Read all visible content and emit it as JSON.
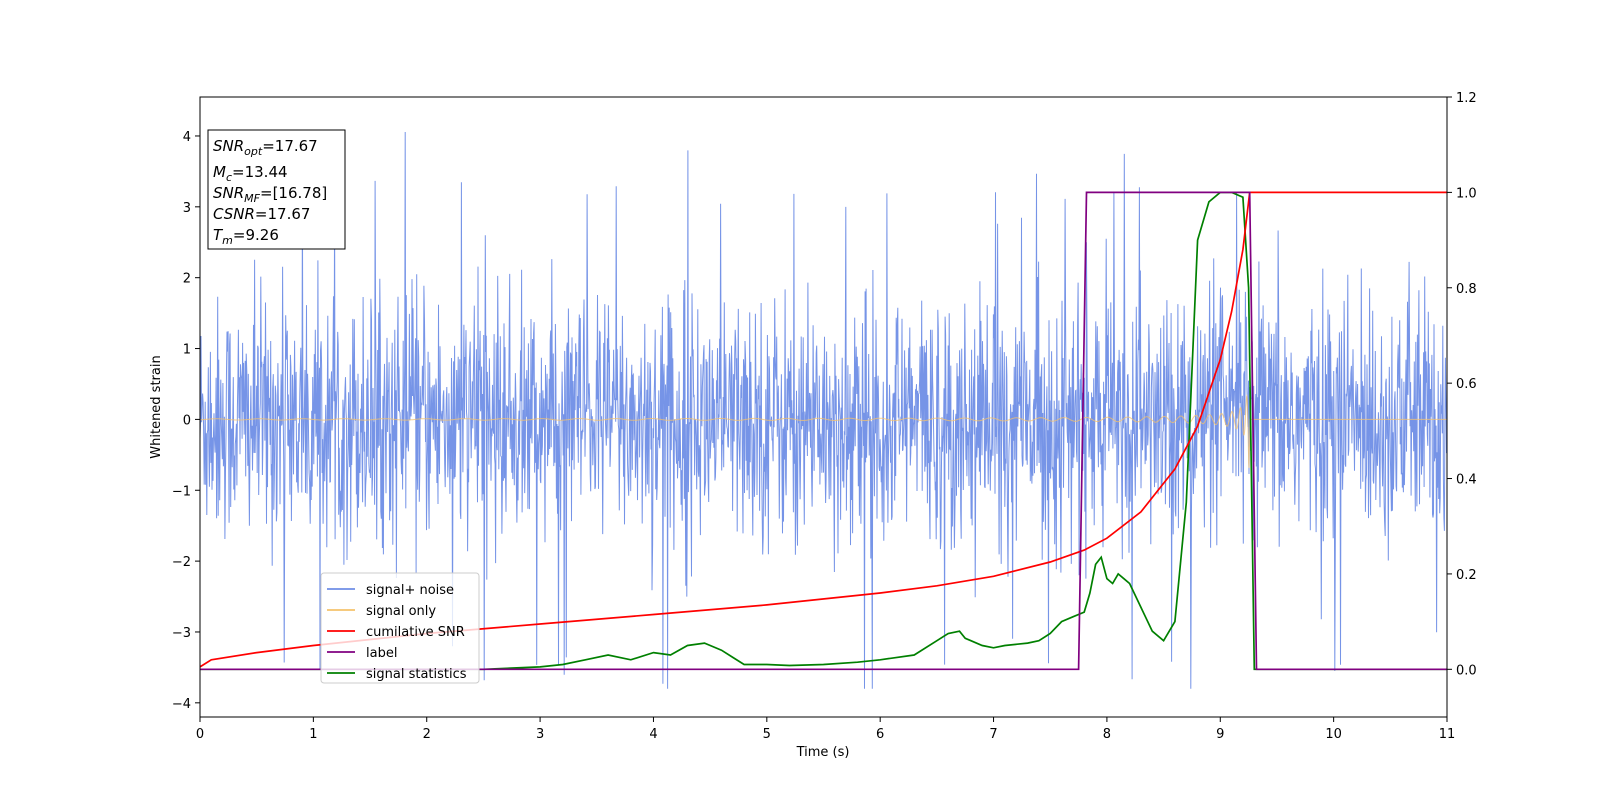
{
  "chart_data": {
    "type": "line",
    "title": "",
    "xlabel": "Time (s)",
    "ylabel": "Whitened strain",
    "xlim": [
      0,
      11
    ],
    "ylim": [
      -4.2,
      4.55
    ],
    "y2lim": [
      -0.1,
      1.2
    ],
    "x_ticks": [
      "0",
      "1",
      "2",
      "3",
      "4",
      "5",
      "6",
      "7",
      "8",
      "9",
      "10",
      "11"
    ],
    "y_ticks": [
      "4",
      "3",
      "2",
      "1",
      "0",
      "−1",
      "−2",
      "−3",
      "−4"
    ],
    "y2_ticks": [
      "1.2",
      "1.0",
      "0.8",
      "0.6",
      "0.4",
      "0.2",
      "0.0"
    ],
    "grid": false,
    "legend_position": "lower-left",
    "info_box": {
      "snr_opt": {
        "label": "SNR",
        "sub": "opt",
        "value": "=17.67"
      },
      "mc": {
        "label": "M",
        "sub": "c",
        "value": "=13.44"
      },
      "snr_mf": {
        "label": "SNR",
        "sub": "MF",
        "value": "=[16.78]"
      },
      "csnr": {
        "label": "CSNR",
        "value": "=17.67"
      },
      "tm": {
        "label": "T",
        "sub": "m",
        "value": "=9.26"
      }
    },
    "series": [
      {
        "name": "signal+ noise",
        "color": "#6f8ee6",
        "axis": "left",
        "style": "dense noise, amplitude about ±2.5 with spikes near 4.2 and −3.8"
      },
      {
        "name": "signal only",
        "color": "#f5c26b",
        "axis": "left",
        "style": "chirp growing from 0 to 9.26 s, then flat at 0",
        "merge_time": 9.26
      },
      {
        "name": "cumilative SNR",
        "color": "#ff0000",
        "axis": "right",
        "x": [
          0,
          0.1,
          0.5,
          1,
          2,
          3,
          4,
          5,
          6,
          6.5,
          7,
          7.5,
          7.8,
          8,
          8.3,
          8.6,
          8.8,
          9,
          9.1,
          9.2,
          9.26,
          10,
          11
        ],
        "y": [
          0.005,
          0.02,
          0.035,
          0.05,
          0.075,
          0.095,
          0.115,
          0.135,
          0.16,
          0.175,
          0.195,
          0.225,
          0.25,
          0.275,
          0.33,
          0.42,
          0.51,
          0.65,
          0.75,
          0.88,
          1.0,
          1.0,
          1.0
        ]
      },
      {
        "name": "label",
        "color": "#800080",
        "axis": "right",
        "x": [
          0,
          7.75,
          7.82,
          9.26,
          9.32,
          11
        ],
        "y": [
          0,
          0,
          1,
          1,
          0,
          0
        ]
      },
      {
        "name": "signal statistics",
        "color": "#008000",
        "axis": "right",
        "x": [
          0,
          2.5,
          3,
          3.2,
          3.4,
          3.6,
          3.8,
          4,
          4.15,
          4.3,
          4.45,
          4.6,
          4.7,
          4.8,
          5,
          5.2,
          5.5,
          5.8,
          6,
          6.3,
          6.5,
          6.6,
          6.7,
          6.75,
          6.8,
          6.9,
          7,
          7.1,
          7.3,
          7.4,
          7.5,
          7.6,
          7.7,
          7.8,
          7.85,
          7.9,
          7.95,
          8,
          8.05,
          8.1,
          8.15,
          8.2,
          8.3,
          8.4,
          8.5,
          8.6,
          8.7,
          8.8,
          8.9,
          9,
          9.1,
          9.2,
          9.25,
          9.3,
          10,
          11
        ],
        "y": [
          0,
          0,
          0.005,
          0.01,
          0.02,
          0.03,
          0.02,
          0.035,
          0.03,
          0.05,
          0.055,
          0.04,
          0.025,
          0.01,
          0.01,
          0.008,
          0.01,
          0.015,
          0.02,
          0.03,
          0.06,
          0.075,
          0.08,
          0.065,
          0.06,
          0.05,
          0.045,
          0.05,
          0.055,
          0.06,
          0.075,
          0.1,
          0.11,
          0.12,
          0.16,
          0.22,
          0.235,
          0.19,
          0.18,
          0.2,
          0.19,
          0.18,
          0.13,
          0.08,
          0.06,
          0.1,
          0.35,
          0.9,
          0.98,
          1.0,
          1.0,
          0.99,
          0.8,
          0.0,
          0.0,
          0.0
        ]
      }
    ]
  }
}
